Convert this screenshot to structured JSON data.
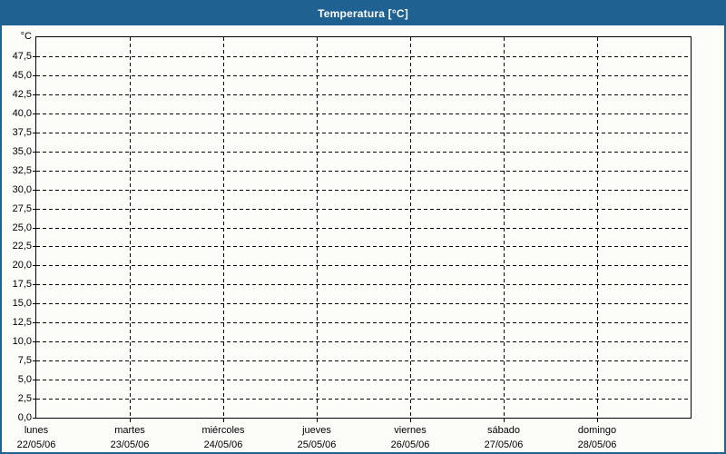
{
  "window": {
    "title": "Temperatura [°C]"
  },
  "colors": {
    "accent_blue": "#1f6191",
    "background": "#fcfdf9",
    "grid": "#000000",
    "title_text": "#ffffff",
    "label_text": "#000000"
  },
  "chart_data": {
    "type": "line",
    "title": "Temperatura [°C]",
    "series": [],
    "legend": "none",
    "grid": {
      "horizontal": "dashed",
      "vertical": "dashed"
    },
    "y_axis": {
      "unit_label": "°C",
      "min": 0,
      "max": 50,
      "tick_step": 2.5,
      "decimal_separator": ",",
      "tick_labels": [
        "0,0",
        "2,5",
        "5,0",
        "7,5",
        "10,0",
        "12,5",
        "15,0",
        "17,5",
        "20,0",
        "22,5",
        "25,0",
        "27,5",
        "30,0",
        "32,5",
        "35,0",
        "37,5",
        "40,0",
        "42,5",
        "45,0",
        "47,5"
      ]
    },
    "x_axis": {
      "categories": [
        {
          "day": "lunes",
          "date": "22/05/06"
        },
        {
          "day": "martes",
          "date": "23/05/06"
        },
        {
          "day": "miércoles",
          "date": "24/05/06"
        },
        {
          "day": "jueves",
          "date": "25/05/06"
        },
        {
          "day": "viernes",
          "date": "26/05/06"
        },
        {
          "day": "sábado",
          "date": "27/05/06"
        },
        {
          "day": "domingo",
          "date": "28/05/06"
        }
      ]
    }
  }
}
